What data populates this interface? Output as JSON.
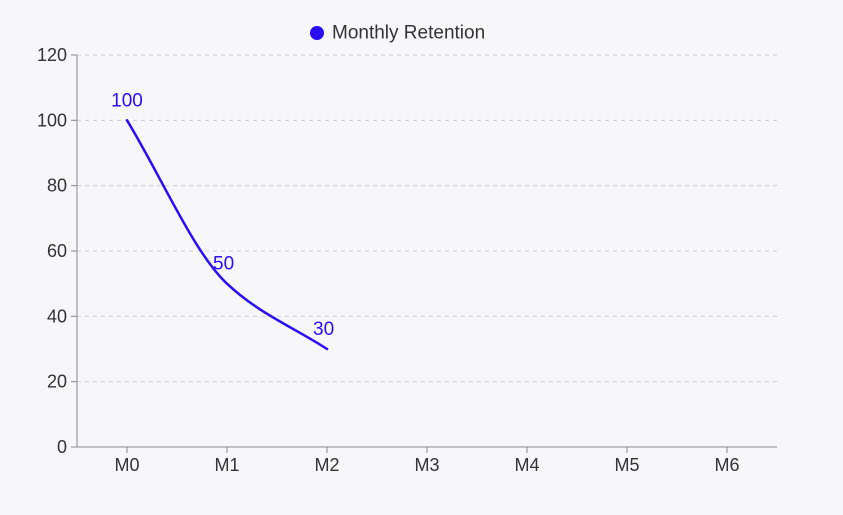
{
  "colors": {
    "background": "#f7f7fa",
    "series": "#2a0cf5",
    "axis": "#8a8a8a",
    "grid": "#d0d0d8",
    "text": "#333333"
  },
  "chart_data": {
    "type": "line",
    "categories": [
      "M0",
      "M1",
      "M2",
      "M3",
      "M4",
      "M5",
      "M6"
    ],
    "series": [
      {
        "name": "Monthly Retention",
        "values": [
          100,
          50,
          30,
          null,
          null,
          null,
          null
        ],
        "color": "#2a0cf5"
      }
    ],
    "y_ticks": [
      0,
      20,
      40,
      60,
      80,
      100,
      120
    ],
    "ylim": [
      0,
      120
    ],
    "title": "",
    "xlabel": "",
    "ylabel": "",
    "grid": "horizontal dashed",
    "legend": "top-center",
    "data_labels": true,
    "smooth": true
  }
}
